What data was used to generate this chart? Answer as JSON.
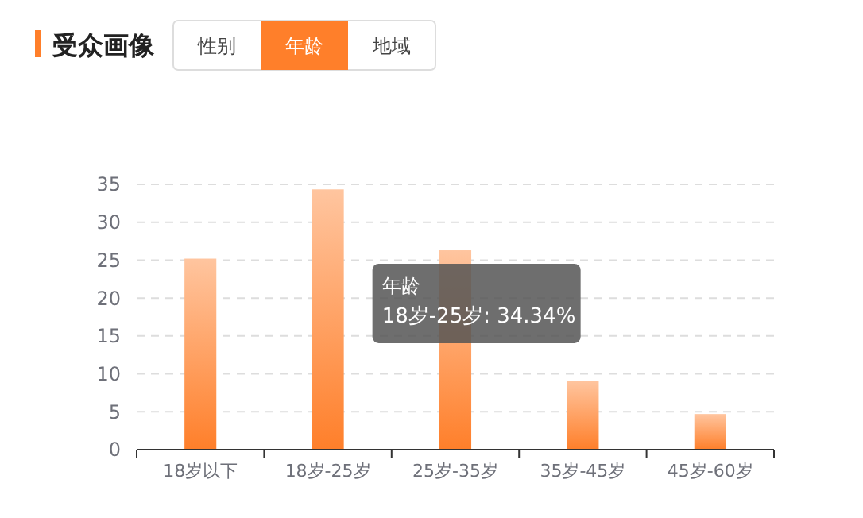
{
  "chart_data": {
    "type": "bar",
    "title": "受众画像",
    "categories": [
      "18岁以下",
      "18岁-25岁",
      "25岁-35岁",
      "35岁-45岁",
      "45岁-60岁"
    ],
    "values": [
      25.2,
      34.34,
      26.3,
      9.1,
      4.7
    ],
    "color": "#ff7f2a",
    "ylim": [
      0,
      35
    ],
    "yticks": [
      0,
      5,
      10,
      15,
      20,
      25,
      30,
      35
    ],
    "grid": "y",
    "annotations": [
      "性别",
      "年龄",
      "地域",
      "年龄",
      "18岁-25岁: 34.34%"
    ]
  }
}
